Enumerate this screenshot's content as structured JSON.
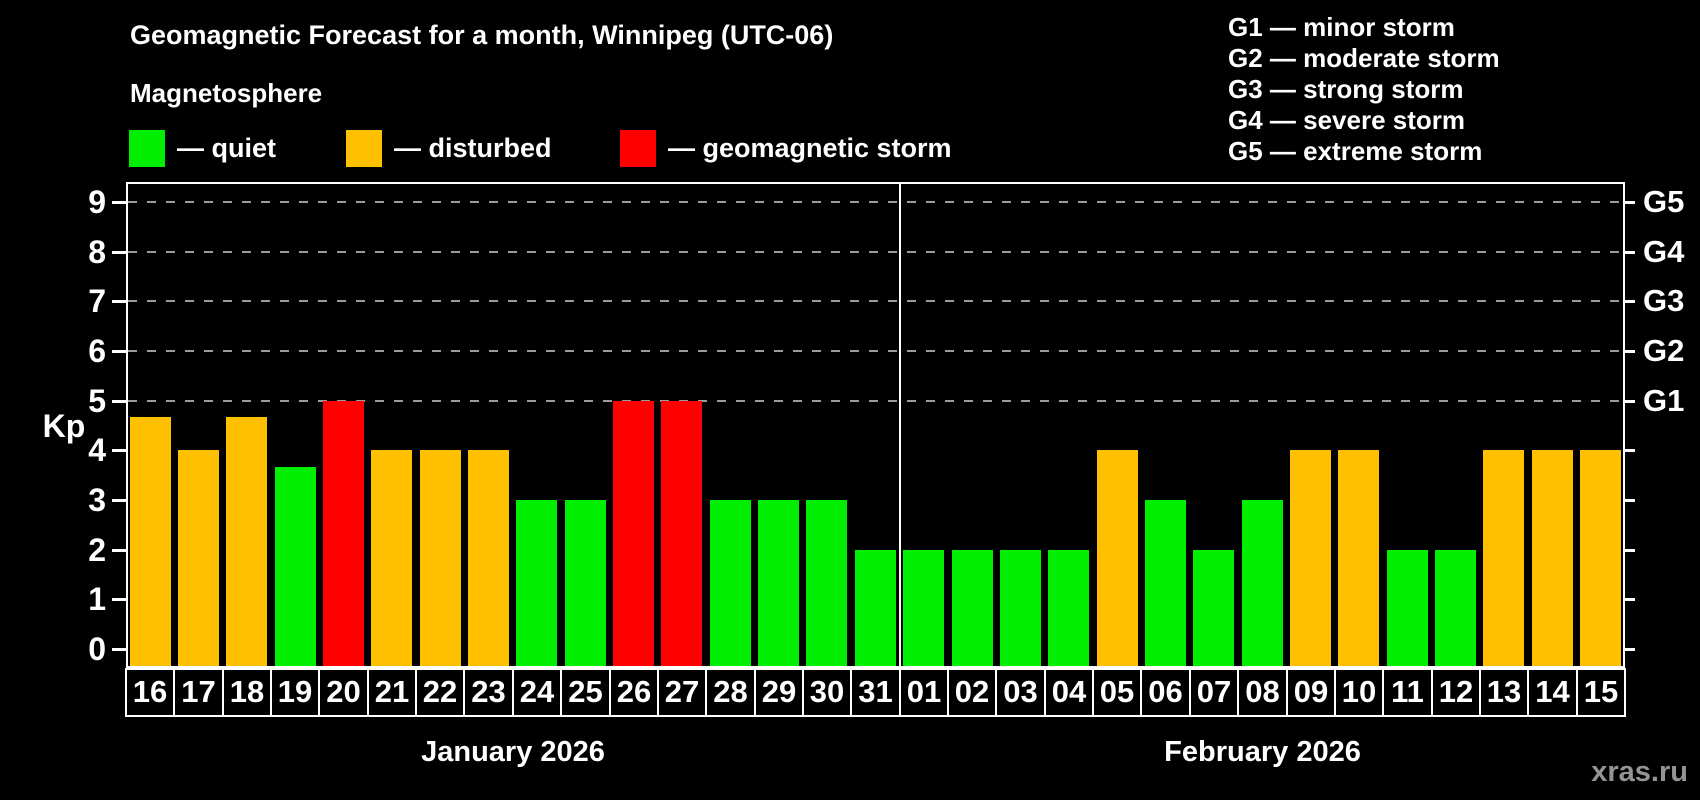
{
  "title": "Geomagnetic Forecast for a month, Winnipeg (UTC-06)",
  "subtitle": "Magnetosphere",
  "legend": {
    "items": [
      {
        "state": "quiet",
        "label": "— quiet"
      },
      {
        "state": "disturbed",
        "label": "— disturbed"
      },
      {
        "state": "storm",
        "label": "— geomagnetic storm"
      }
    ]
  },
  "g_scale_legend": [
    "G1 — minor storm",
    "G2 — moderate storm",
    "G3 — strong storm",
    "G4 — severe storm",
    "G5 — extreme storm"
  ],
  "colors": {
    "quiet": "#00ee00",
    "disturbed": "#ffc000",
    "storm": "#ff0000",
    "grid": "#9b9b9b",
    "axis": "#ffffff",
    "watermark": "#949494"
  },
  "watermark": "xras.ru",
  "chart_data": {
    "type": "bar",
    "ylabel": "Kp",
    "ylim": [
      0,
      9
    ],
    "y_ticks": [
      0,
      1,
      2,
      3,
      4,
      5,
      6,
      7,
      8,
      9
    ],
    "gridlines_at": [
      5,
      6,
      7,
      8,
      9
    ],
    "grid_style": "dashed",
    "right_axis_labels": [
      {
        "label": "G1",
        "kp": 5
      },
      {
        "label": "G2",
        "kp": 6
      },
      {
        "label": "G3",
        "kp": 7
      },
      {
        "label": "G4",
        "kp": 8
      },
      {
        "label": "G5",
        "kp": 9
      }
    ],
    "months": [
      {
        "label": "January 2026",
        "days": [
          {
            "day": "16",
            "kp": 4.67,
            "state": "disturbed"
          },
          {
            "day": "17",
            "kp": 4,
            "state": "disturbed"
          },
          {
            "day": "18",
            "kp": 4.67,
            "state": "disturbed"
          },
          {
            "day": "19",
            "kp": 3.67,
            "state": "quiet"
          },
          {
            "day": "20",
            "kp": 5,
            "state": "storm"
          },
          {
            "day": "21",
            "kp": 4,
            "state": "disturbed"
          },
          {
            "day": "22",
            "kp": 4,
            "state": "disturbed"
          },
          {
            "day": "23",
            "kp": 4,
            "state": "disturbed"
          },
          {
            "day": "24",
            "kp": 3,
            "state": "quiet"
          },
          {
            "day": "25",
            "kp": 3,
            "state": "quiet"
          },
          {
            "day": "26",
            "kp": 5,
            "state": "storm"
          },
          {
            "day": "27",
            "kp": 5,
            "state": "storm"
          },
          {
            "day": "28",
            "kp": 3,
            "state": "quiet"
          },
          {
            "day": "29",
            "kp": 3,
            "state": "quiet"
          },
          {
            "day": "30",
            "kp": 3,
            "state": "quiet"
          },
          {
            "day": "31",
            "kp": 2,
            "state": "quiet"
          }
        ]
      },
      {
        "label": "February 2026",
        "days": [
          {
            "day": "01",
            "kp": 2,
            "state": "quiet"
          },
          {
            "day": "02",
            "kp": 2,
            "state": "quiet"
          },
          {
            "day": "03",
            "kp": 2,
            "state": "quiet"
          },
          {
            "day": "04",
            "kp": 2,
            "state": "quiet"
          },
          {
            "day": "05",
            "kp": 4,
            "state": "disturbed"
          },
          {
            "day": "06",
            "kp": 3,
            "state": "quiet"
          },
          {
            "day": "07",
            "kp": 2,
            "state": "quiet"
          },
          {
            "day": "08",
            "kp": 3,
            "state": "quiet"
          },
          {
            "day": "09",
            "kp": 4,
            "state": "disturbed"
          },
          {
            "day": "10",
            "kp": 4,
            "state": "disturbed"
          },
          {
            "day": "11",
            "kp": 2,
            "state": "quiet"
          },
          {
            "day": "12",
            "kp": 2,
            "state": "quiet"
          },
          {
            "day": "13",
            "kp": 4,
            "state": "disturbed"
          },
          {
            "day": "14",
            "kp": 4,
            "state": "disturbed"
          },
          {
            "day": "15",
            "kp": 4,
            "state": "disturbed"
          }
        ]
      }
    ]
  }
}
